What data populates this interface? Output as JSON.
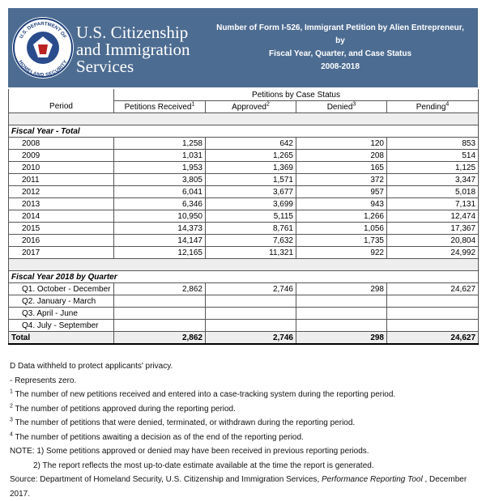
{
  "header": {
    "agency_lines": [
      "U.S. Citizenship",
      "and Immigration",
      "Services"
    ],
    "seal_text": [
      "U.S. DEPARTMENT OF",
      "HOMELAND SECURITY"
    ],
    "report_title_lines": [
      "Number of Form I-526, Immigrant Petition by Alien Entrepreneur, by",
      "Fiscal Year, Quarter, and Case Status",
      "2008-2018"
    ]
  },
  "table": {
    "group_header": "Petitions by Case Status",
    "columns": [
      {
        "label": "Period"
      },
      {
        "label": "Petitions Received",
        "note": "1"
      },
      {
        "label": "Approved",
        "note": "2"
      },
      {
        "label": "Denied",
        "note": "3"
      },
      {
        "label": "Pending",
        "note": "4"
      }
    ],
    "sections": [
      {
        "title": "Fiscal Year - Total",
        "rows": [
          [
            "2008",
            "1,258",
            "642",
            "120",
            "853"
          ],
          [
            "2009",
            "1,031",
            "1,265",
            "208",
            "514"
          ],
          [
            "2010",
            "1,953",
            "1,369",
            "165",
            "1,125"
          ],
          [
            "2011",
            "3,805",
            "1,571",
            "372",
            "3,347"
          ],
          [
            "2012",
            "6,041",
            "3,677",
            "957",
            "5,018"
          ],
          [
            "2013",
            "6,346",
            "3,699",
            "943",
            "7,131"
          ],
          [
            "2014",
            "10,950",
            "5,115",
            "1,266",
            "12,474"
          ],
          [
            "2015",
            "14,373",
            "8,761",
            "1,056",
            "17,367"
          ],
          [
            "2016",
            "14,147",
            "7,632",
            "1,735",
            "20,804"
          ],
          [
            "2017",
            "12,165",
            "11,321",
            "922",
            "24,992"
          ]
        ]
      },
      {
        "title": "Fiscal Year 2018 by Quarter",
        "rows": [
          [
            "Q1. October - December",
            "2,862",
            "2,746",
            "298",
            "24,627"
          ],
          [
            "Q2. January - March",
            null,
            null,
            null,
            null
          ],
          [
            "Q3. April - June",
            null,
            null,
            null,
            null
          ],
          [
            "Q4. July - September",
            null,
            null,
            null,
            null
          ]
        ]
      }
    ],
    "total": [
      "Total",
      "2,862",
      "2,746",
      "298",
      "24,627"
    ]
  },
  "footnotes": {
    "items": [
      {
        "text": "D  Data withheld to protect applicants' privacy."
      },
      {
        "text": "- Represents zero."
      },
      {
        "marker": "1",
        "text": " The number of new petitions received and entered into a case-tracking system during the reporting period."
      },
      {
        "marker": "2",
        "text": " The number of petitions approved during the reporting period."
      },
      {
        "marker": "3",
        "text": " The number of petitions that were denied, terminated, or withdrawn during the reporting period."
      },
      {
        "marker": "4",
        "text": " The number of petitions awaiting a decision as of the end of the reporting period."
      }
    ],
    "notes": [
      "NOTE:  1) Some petitions approved or denied may have been received in previous reporting periods.",
      "2) The report reflects the most up-to-date estimate available at the time the report is generated."
    ],
    "source": {
      "prefix": "Source:  Department of Homeland Security, U.S. Citizenship and Immigration Services, ",
      "italic": "Performance Reporting Tool",
      "suffix": " , December 2017."
    }
  }
}
